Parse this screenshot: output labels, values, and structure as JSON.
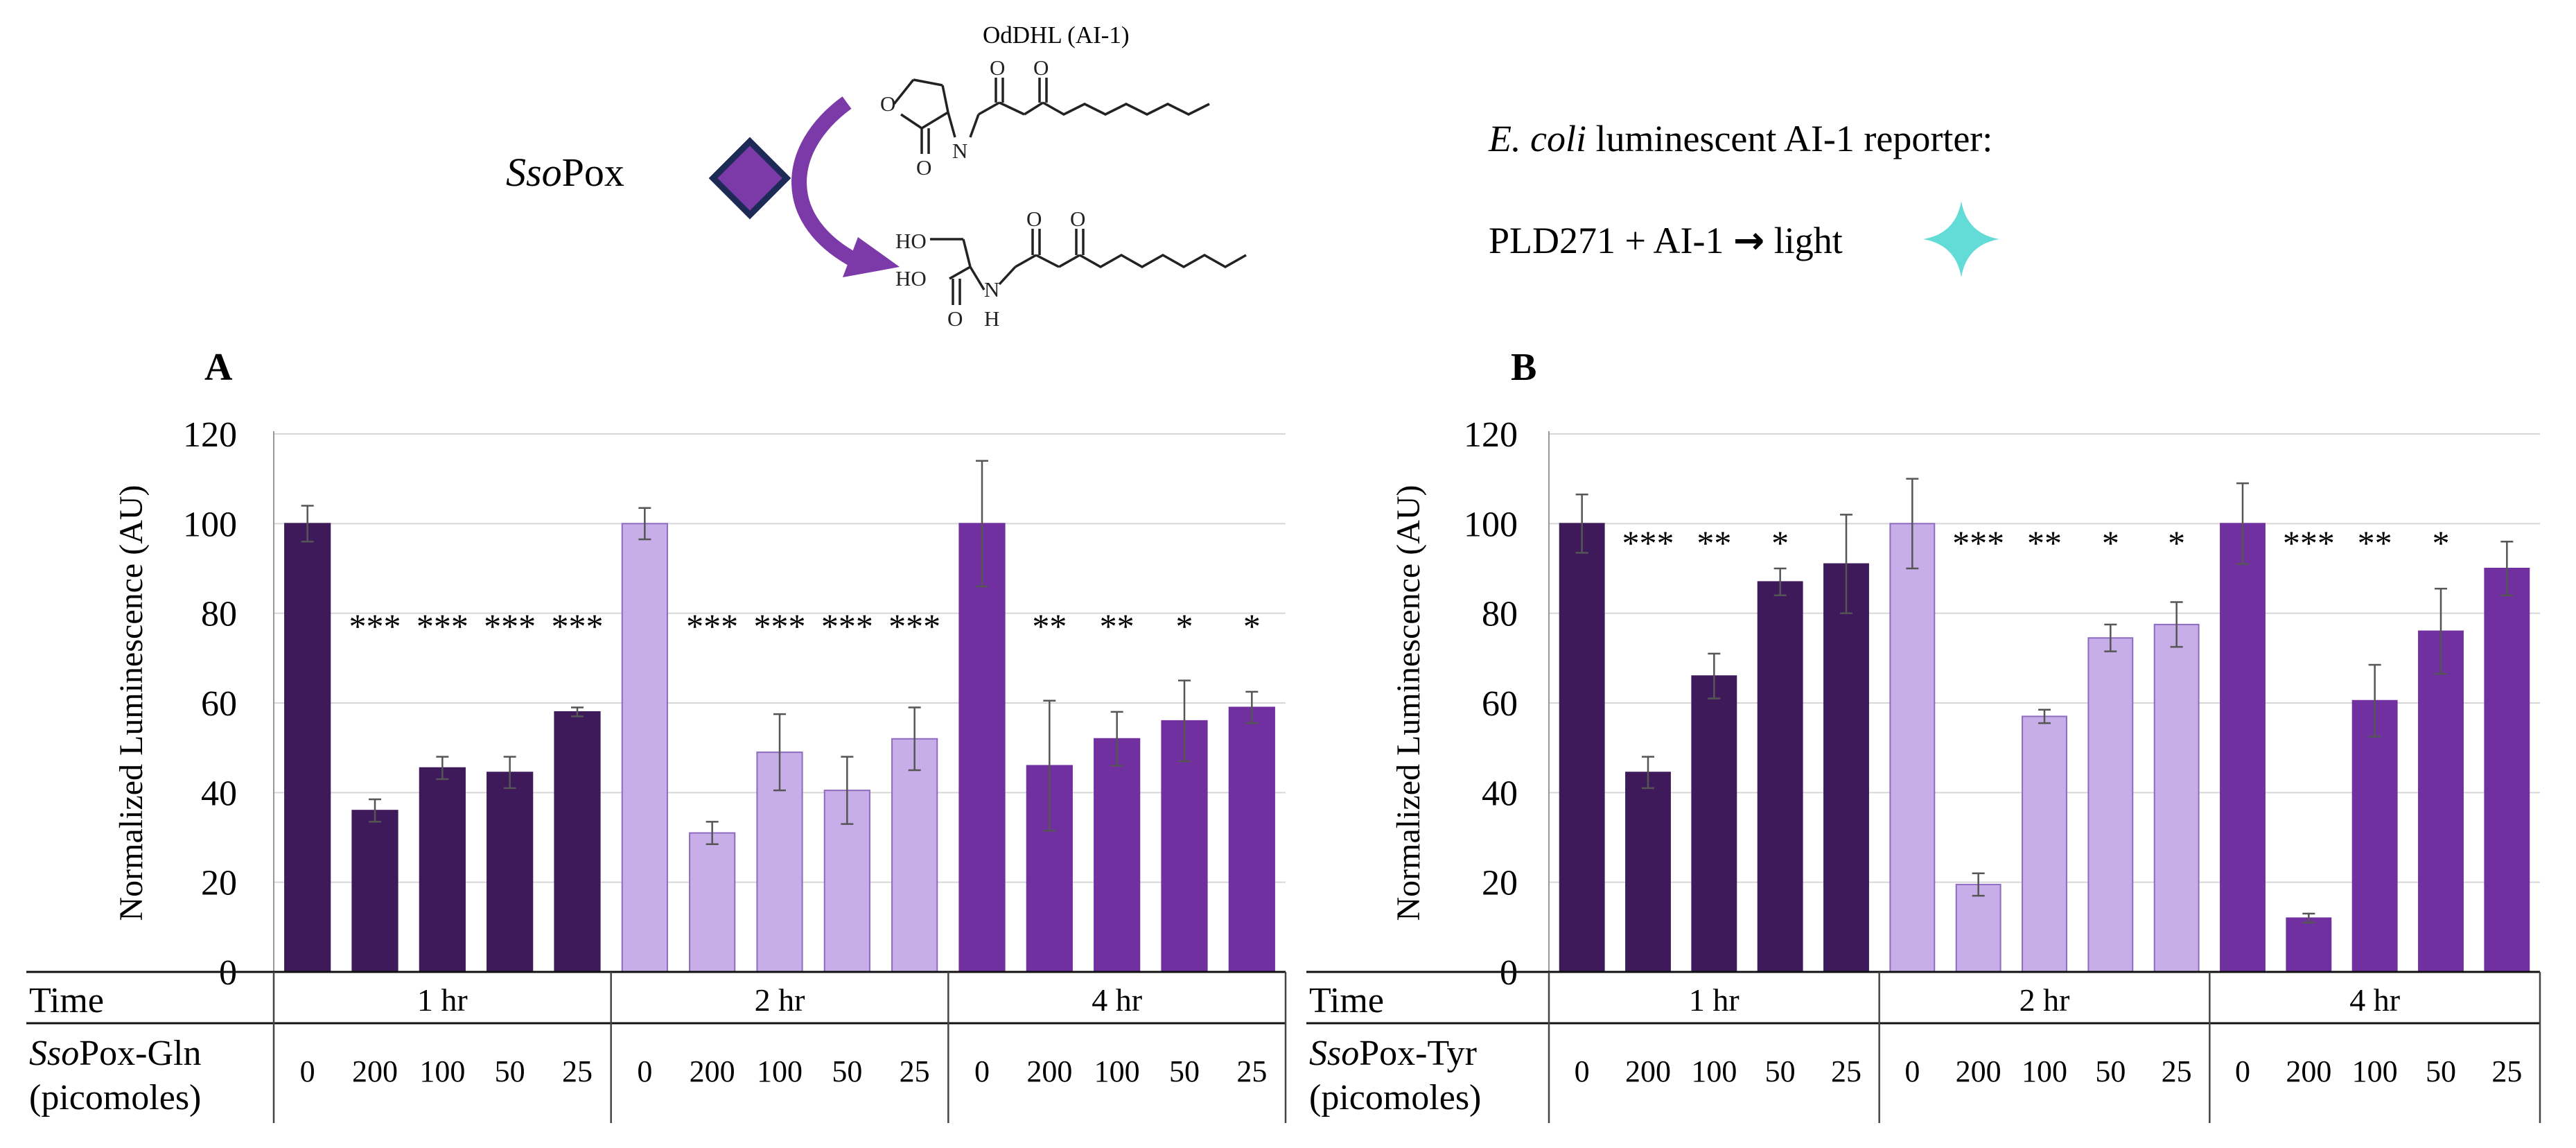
{
  "header": {
    "enzyme_italic": "Sso",
    "enzyme_rest": "Pox",
    "substrate_label": "OdDHL (AI-1)",
    "reporter_italic": "E. coli",
    "reporter_rest": " luminescent AI-1 reporter:",
    "reaction_prefix": "PLD271 + AI-1 ",
    "reaction_arrow": "→",
    "reaction_suffix": " light",
    "atoms": {
      "O": "O",
      "N": "N",
      "H": "H",
      "HO": "HO"
    }
  },
  "colors": {
    "one_hr": "#3f1a5a",
    "two_hr": "#c8aee8",
    "two_hr_edge": "#8e6bc0",
    "four_hr": "#7130a0",
    "sparkle": "#63dcd7",
    "diamond": "#7b3aa8",
    "diamond_edge": "#1c2a55",
    "arrow": "#7b3aa8",
    "grid": "#d6d6d6"
  },
  "chart_data": [
    {
      "panel": "A",
      "type": "bar",
      "ylabel": "Normalized  Luminescence  (AU)",
      "ylim": [
        0,
        120
      ],
      "yticks": [
        0,
        20,
        40,
        60,
        80,
        100,
        120
      ],
      "grid": true,
      "row1_label": "Time",
      "row2_label_italic": "Sso",
      "row2_label_rest": "Pox-Gln",
      "row2_sublabel": "(picomoles)",
      "categories": [
        "0",
        "200",
        "100",
        "50",
        "25"
      ],
      "series": [
        {
          "name": "1 hr",
          "color_key": "one_hr",
          "values": [
            100,
            36,
            45.5,
            44.5,
            58
          ],
          "errors": [
            4,
            2.5,
            2.5,
            3.5,
            1
          ],
          "stars": [
            "",
            "***",
            "***",
            "***",
            "***"
          ]
        },
        {
          "name": "2 hr",
          "color_key": "two_hr",
          "values": [
            100,
            31,
            49,
            40.5,
            52
          ],
          "errors": [
            3.5,
            2.5,
            8.5,
            7.5,
            7
          ],
          "stars": [
            "",
            "***",
            "***",
            "***",
            "***"
          ]
        },
        {
          "name": "4 hr",
          "color_key": "four_hr",
          "values": [
            100,
            46,
            52,
            56,
            59
          ],
          "errors": [
            14,
            14.5,
            6,
            9,
            3.5
          ],
          "stars": [
            "",
            "**",
            "**",
            "*",
            "*"
          ]
        }
      ]
    },
    {
      "panel": "B",
      "type": "bar",
      "ylabel": "Normalized  Luminescence  (AU)",
      "ylim": [
        0,
        120
      ],
      "yticks": [
        0,
        20,
        40,
        60,
        80,
        100,
        120
      ],
      "grid": true,
      "row1_label": "Time",
      "row2_label_italic": "Sso",
      "row2_label_rest": "Pox-Tyr",
      "row2_sublabel": "(picomoles)",
      "categories": [
        "0",
        "200",
        "100",
        "50",
        "25"
      ],
      "series": [
        {
          "name": "1 hr",
          "color_key": "one_hr",
          "values": [
            100,
            44.5,
            66,
            87,
            91
          ],
          "errors": [
            6.5,
            3.5,
            5,
            3,
            11
          ],
          "stars": [
            "",
            "***",
            "**",
            "*",
            ""
          ]
        },
        {
          "name": "2 hr",
          "color_key": "two_hr",
          "values": [
            100,
            19.5,
            57,
            74.5,
            77.5
          ],
          "errors": [
            10,
            2.5,
            1.5,
            3,
            5
          ],
          "stars": [
            "",
            "***",
            "**",
            "*",
            "*"
          ]
        },
        {
          "name": "4 hr",
          "color_key": "four_hr",
          "values": [
            100,
            12,
            60.5,
            76,
            90
          ],
          "errors": [
            9,
            1,
            8,
            9.5,
            6
          ],
          "stars": [
            "",
            "***",
            "**",
            "*",
            ""
          ]
        }
      ]
    }
  ]
}
